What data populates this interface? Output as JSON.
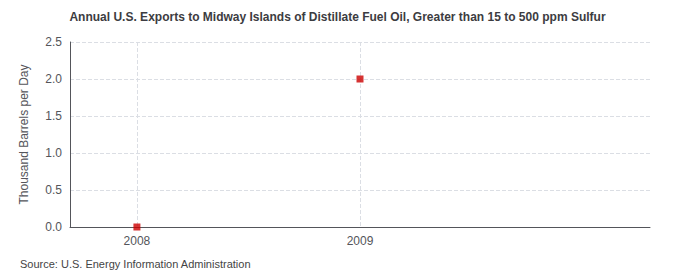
{
  "chart_data": {
    "type": "scatter",
    "title": "Annual U.S. Exports to Midway Islands of Distillate Fuel Oil, Greater than 15 to 500 ppm Sulfur",
    "ylabel": "Thousand Barrels per Day",
    "annotations": [
      "Source: U.S. Energy Information Administration"
    ],
    "x": [
      2008,
      2009
    ],
    "values": [
      0.0,
      2.0
    ],
    "color": "#cc0000",
    "marker": "square",
    "xlim": [
      2007.7,
      2010.3
    ],
    "xticks": [
      2008,
      2009
    ],
    "ylim": [
      0.0,
      2.5
    ],
    "yticks": [
      {
        "value": 0.0,
        "label": "0.0"
      },
      0.5,
      {
        "value": 1.0,
        "label": "1.0"
      },
      1.5,
      {
        "value": 2.0,
        "label": "2.0"
      },
      2.5
    ],
    "grid": true
  }
}
